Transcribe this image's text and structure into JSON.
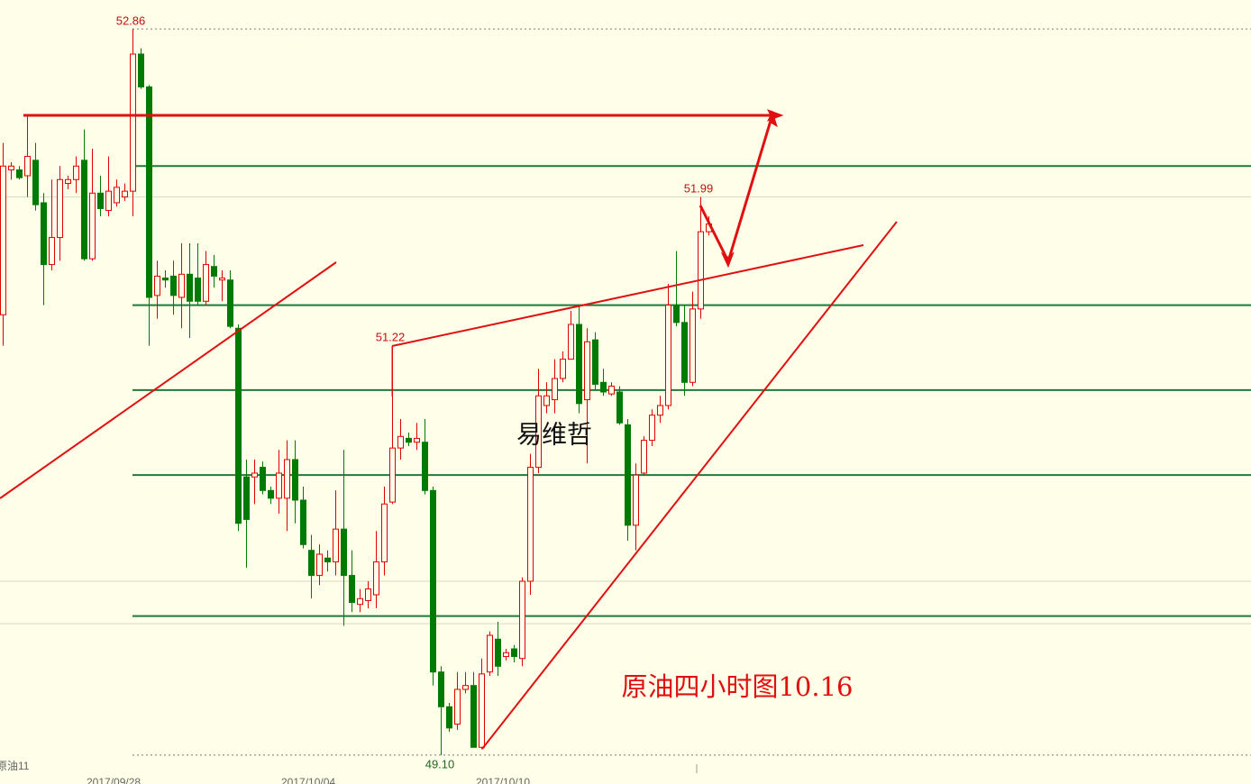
{
  "chart_data": {
    "type": "candlestick",
    "title": "原油四小时图10.16",
    "watermark": "易维哲",
    "symbol": "原油11",
    "price_labels": [
      "52.86",
      "51.99",
      "51.22",
      "49.10"
    ],
    "categories": [
      null,
      null,
      null,
      null,
      null,
      null,
      null,
      null,
      null,
      null,
      "2017/09/28",
      null,
      null,
      null,
      null,
      null,
      null,
      null,
      null,
      null,
      null,
      null,
      null,
      null,
      null,
      null,
      null,
      null,
      null,
      null,
      null,
      null,
      null,
      null,
      "2017/10/04",
      null,
      null,
      null,
      null,
      null,
      null,
      null,
      null,
      null,
      null,
      null,
      null,
      null,
      null,
      null,
      null,
      null,
      null,
      null,
      null,
      null,
      null,
      null,
      "2017/10/10",
      null,
      null,
      null,
      null,
      null,
      null,
      null,
      null,
      null,
      null,
      null,
      null,
      null,
      null,
      null,
      null,
      null,
      null,
      null,
      null,
      null,
      null,
      null,
      null,
      null,
      null,
      null,
      null,
      null
    ],
    "open": [
      51.38,
      52.13,
      52.13,
      52.1,
      52.18,
      51.96,
      51.64,
      51.78,
      52.06,
      52.08,
      52.18,
      51.67,
      52.01,
      51.92,
      51.96,
      51.99,
      52.02,
      52.73,
      52.56,
      51.48,
      51.57,
      51.58,
      51.47,
      51.59,
      51.57,
      51.45,
      51.63,
      51.56,
      51.56,
      51.31,
      50.54,
      50.54,
      50.59,
      50.47,
      50.43,
      50.43,
      50.63,
      50.42,
      50.16,
      50.03,
      50.12,
      50.1,
      50.27,
      50.03,
      49.88,
      49.9,
      49.93,
      50.1,
      50.41,
      50.69,
      50.74,
      50.72,
      50.72,
      50.47,
      49.53,
      49.35,
      49.26,
      49.44,
      49.46,
      49.14,
      49.53,
      49.7,
      49.61,
      49.65,
      49.6,
      50.0,
      50.59,
      50.91,
      50.94,
      51.05,
      51.15,
      51.33,
      50.94,
      51.25,
      51.03,
      50.97,
      50.98,
      50.81,
      50.29,
      50.56,
      50.73,
      50.86,
      50.91,
      51.43,
      51.34,
      51.03,
      51.41,
      51.81
    ],
    "high": [
      52.27,
      52.17,
      52.15,
      52.41,
      52.27,
      52.01,
      52.08,
      52.15,
      52.1,
      52.2,
      52.34,
      52.24,
      52.1,
      52.2,
      52.08,
      52.06,
      52.86,
      52.76,
      52.57,
      51.66,
      51.61,
      51.66,
      51.75,
      51.75,
      51.75,
      51.71,
      51.69,
      51.61,
      51.61,
      51.33,
      50.63,
      50.63,
      50.62,
      50.49,
      50.68,
      50.73,
      50.73,
      50.49,
      50.24,
      50.19,
      50.16,
      50.47,
      50.68,
      50.16,
      49.96,
      50.0,
      50.26,
      50.49,
      51.22,
      50.84,
      50.77,
      50.82,
      50.84,
      50.49,
      49.56,
      49.37,
      49.53,
      49.53,
      49.53,
      49.6,
      49.74,
      49.79,
      49.65,
      49.67,
      50.02,
      50.66,
      51.1,
      51.03,
      51.15,
      51.19,
      51.4,
      51.43,
      51.31,
      51.29,
      51.1,
      51.03,
      51.01,
      50.84,
      50.61,
      50.75,
      50.89,
      50.96,
      51.54,
      51.71,
      51.43,
      51.5,
      51.99,
      51.89
    ],
    "low": [
      51.22,
      52.08,
      52.08,
      51.99,
      51.92,
      51.43,
      51.61,
      51.66,
      52.03,
      52.01,
      51.66,
      51.66,
      51.89,
      51.89,
      51.94,
      51.97,
      51.89,
      52.55,
      51.22,
      51.36,
      51.52,
      51.38,
      51.31,
      51.26,
      51.43,
      51.43,
      51.52,
      51.45,
      51.31,
      50.26,
      50.07,
      50.4,
      50.45,
      50.4,
      50.35,
      50.26,
      50.3,
      50.17,
      49.91,
      49.98,
      50.05,
      50.03,
      49.77,
      49.84,
      49.84,
      49.86,
      49.86,
      50.03,
      50.4,
      50.63,
      50.7,
      50.68,
      50.45,
      49.46,
      49.1,
      49.22,
      49.23,
      49.42,
      49.14,
      49.13,
      49.51,
      49.51,
      49.59,
      49.58,
      49.56,
      49.93,
      50.56,
      50.87,
      50.87,
      51.03,
      51.15,
      50.87,
      50.61,
      50.99,
      50.96,
      50.96,
      50.81,
      50.21,
      50.16,
      50.55,
      50.7,
      50.82,
      50.89,
      51.32,
      50.96,
      51.01,
      51.36,
      51.79
    ],
    "close": [
      52.15,
      52.15,
      52.09,
      52.2,
      51.95,
      51.64,
      51.78,
      52.08,
      52.08,
      52.15,
      51.67,
      52.01,
      51.93,
      52.02,
      52.04,
      52.02,
      52.73,
      52.56,
      51.47,
      51.58,
      51.56,
      51.48,
      51.59,
      51.45,
      51.45,
      51.64,
      51.58,
      51.57,
      51.32,
      50.3,
      50.32,
      50.56,
      50.47,
      50.43,
      50.56,
      50.63,
      50.42,
      50.19,
      50.03,
      50.14,
      50.1,
      50.27,
      50.03,
      49.89,
      49.91,
      49.96,
      50.1,
      50.4,
      50.69,
      50.75,
      50.72,
      50.74,
      50.47,
      49.53,
      49.35,
      49.24,
      49.44,
      49.46,
      49.14,
      49.52,
      49.72,
      49.56,
      49.63,
      49.61,
      50.0,
      50.59,
      50.96,
      50.96,
      51.05,
      51.15,
      51.33,
      50.92,
      51.24,
      51.02,
      50.98,
      51.01,
      50.82,
      50.29,
      50.55,
      50.73,
      50.86,
      50.91,
      51.43,
      51.34,
      51.03,
      51.41,
      51.81,
      51.85
    ],
    "up_color": "#e00000",
    "down_color": "#007a00",
    "levels": [
      52.15,
      51.43,
      50.99,
      50.55,
      49.82
    ],
    "level_color": "#1e7a3c",
    "dotted_levels": [
      52.86,
      49.1
    ],
    "gray_levels": [
      51.99,
      50.0,
      49.78
    ],
    "ylim": [
      48.95,
      53.01
    ]
  }
}
